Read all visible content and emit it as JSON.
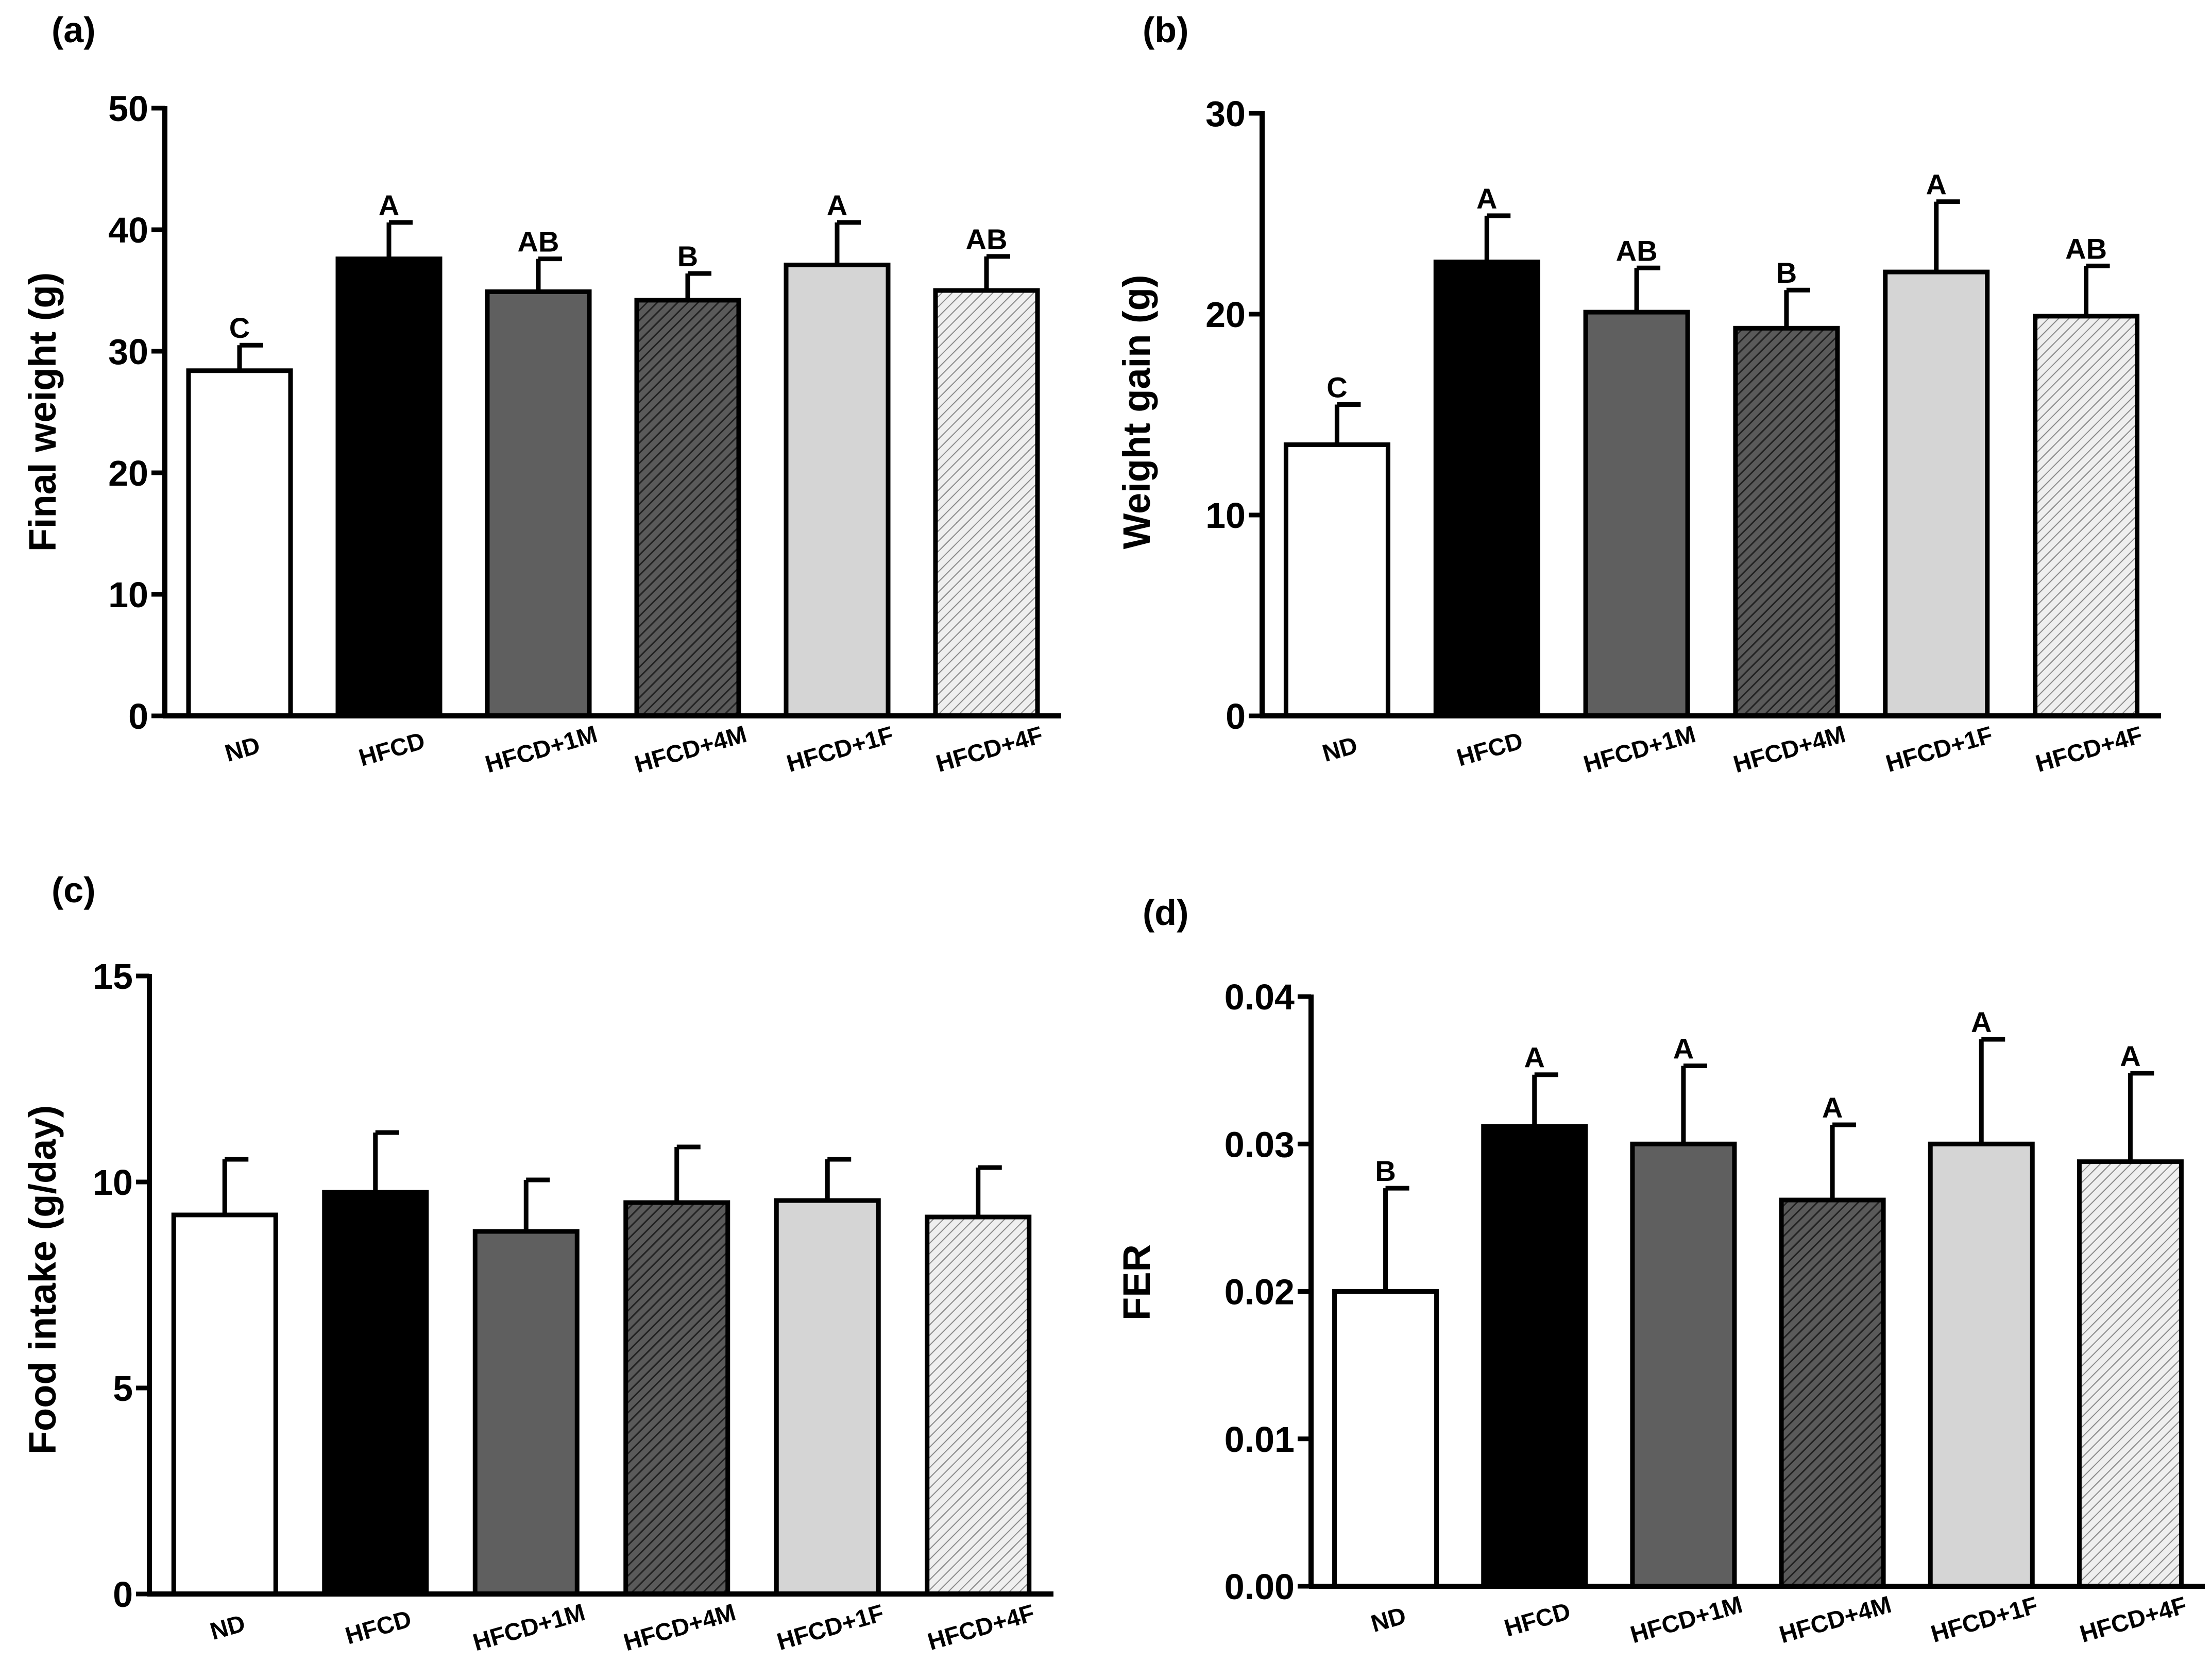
{
  "chart_data": [
    {
      "panel": "(a)",
      "type": "bar",
      "ylabel": "Final weight (g)",
      "xlabel": "",
      "ylim": [
        0,
        50
      ],
      "yticks": [
        "0",
        "10",
        "20",
        "30",
        "40",
        "50"
      ],
      "categories": [
        "ND",
        "HFCD",
        "HFCD+1M",
        "HFCD+4M",
        "HFCD+1F",
        "HFCD+4F"
      ],
      "values": [
        28.4,
        37.6,
        34.9,
        34.2,
        37.1,
        35.0
      ],
      "errors": [
        2.1,
        3.0,
        2.7,
        2.2,
        3.5,
        2.8
      ],
      "significance": [
        "C",
        "A",
        "AB",
        "B",
        "A",
        "AB"
      ]
    },
    {
      "panel": "(b)",
      "type": "bar",
      "ylabel": "Weight gain (g)",
      "xlabel": "",
      "ylim": [
        0,
        30
      ],
      "yticks": [
        "0",
        "10",
        "20",
        "30"
      ],
      "categories": [
        "ND",
        "HFCD",
        "HFCD+1M",
        "HFCD+4M",
        "HFCD+1F",
        "HFCD+4F"
      ],
      "values": [
        13.5,
        22.6,
        20.1,
        19.3,
        22.1,
        19.9
      ],
      "errors": [
        2.0,
        2.3,
        2.2,
        1.9,
        3.5,
        2.5
      ],
      "significance": [
        "C",
        "A",
        "AB",
        "B",
        "A",
        "AB"
      ]
    },
    {
      "panel": "(c)",
      "type": "bar",
      "ylabel": "Food intake (g/day)",
      "xlabel": "",
      "ylim": [
        0,
        15
      ],
      "yticks": [
        "0",
        "5",
        "10",
        "15"
      ],
      "categories": [
        "ND",
        "HFCD",
        "HFCD+1M",
        "HFCD+4M",
        "HFCD+1F",
        "HFCD+4F"
      ],
      "values": [
        9.2,
        9.75,
        8.8,
        9.5,
        9.55,
        9.15
      ],
      "errors": [
        1.35,
        1.45,
        1.25,
        1.35,
        1.0,
        1.2
      ],
      "significance": [
        "",
        "",
        "",
        "",
        "",
        ""
      ]
    },
    {
      "panel": "(d)",
      "type": "bar",
      "ylabel": "FER",
      "xlabel": "",
      "ylim": [
        0,
        0.04
      ],
      "yticks": [
        "0.00",
        "0.01",
        "0.02",
        "0.03",
        "0.04"
      ],
      "categories": [
        "ND",
        "HFCD",
        "HFCD+1M",
        "HFCD+4M",
        "HFCD+1F",
        "HFCD+4F"
      ],
      "values": [
        0.02,
        0.0312,
        0.03,
        0.0262,
        0.03,
        0.0288
      ],
      "errors": [
        0.007,
        0.0035,
        0.0053,
        0.0051,
        0.0071,
        0.006
      ],
      "significance": [
        "B",
        "A",
        "A",
        "A",
        "A",
        "A"
      ]
    }
  ],
  "colors": {
    "axis": "#000000",
    "bar_fills": [
      "#ffffff",
      "#000000",
      "#5f5f5f",
      "#4a4a4a",
      "#d5d5d5",
      "#e8e8e8"
    ],
    "bar_patterns": [
      "none",
      "none",
      "none",
      "hatch-dark",
      "none",
      "hatch-light"
    ]
  }
}
